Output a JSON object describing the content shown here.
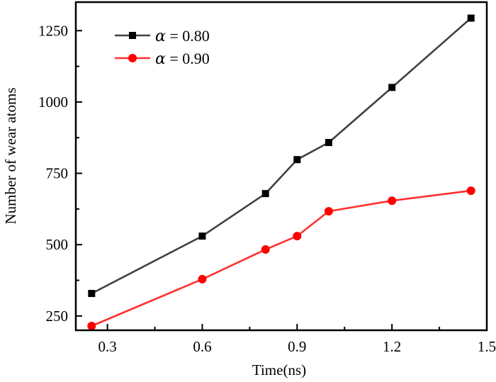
{
  "chart_data": {
    "type": "line",
    "title": "",
    "xlabel": "Time(ns)",
    "ylabel": "Number of wear atoms",
    "xlim": [
      0.2,
      1.5
    ],
    "ylim": [
      200,
      1350
    ],
    "xticks": [
      0.3,
      0.6,
      0.9,
      1.2,
      1.5
    ],
    "xtick_labels": [
      "0.3",
      "0.6",
      "0.9",
      "1.2",
      "1.5"
    ],
    "xminor": [
      0.45,
      0.75,
      1.05,
      1.35
    ],
    "yticks": [
      250,
      500,
      750,
      1000,
      1250
    ],
    "ytick_labels": [
      "250",
      "500",
      "750",
      "1000",
      "1250"
    ],
    "yminor": [
      375,
      625,
      875,
      1125
    ],
    "grid": false,
    "legend_position": "top-left",
    "x": [
      0.25,
      0.6,
      0.8,
      0.9,
      1.0,
      1.2,
      1.45
    ],
    "series": [
      {
        "name": "α = 0.80",
        "symbol": "α",
        "label_rest": " = 0.80",
        "marker": "square",
        "line_color": "#404040",
        "marker_color": "#000000",
        "values": [
          329,
          530,
          679,
          798,
          858,
          1051,
          1294
        ]
      },
      {
        "name": "α = 0.90",
        "symbol": "α",
        "label_rest": " = 0.90",
        "marker": "circle",
        "line_color": "#ff3030",
        "marker_color": "#ff0000",
        "values": [
          215,
          379,
          483,
          530,
          617,
          654,
          689
        ]
      }
    ]
  }
}
